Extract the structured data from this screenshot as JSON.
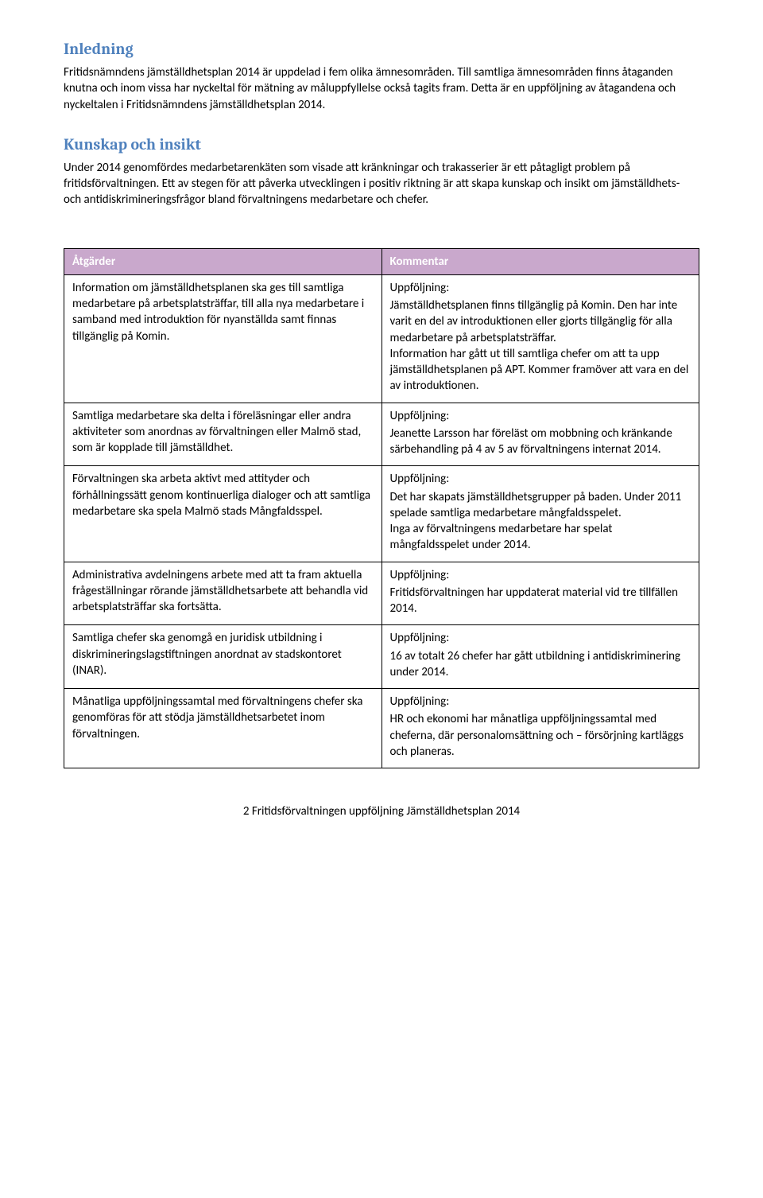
{
  "colors": {
    "heading": "#4f81bd",
    "header_bg": "#c9a8cc",
    "header_text": "#ffffff",
    "border": "#000000",
    "body_text": "#000000",
    "page_bg": "#ffffff"
  },
  "typography": {
    "heading_font": "Cambria, Georgia, serif",
    "body_font": "Calibri, Segoe UI, Arial, sans-serif",
    "heading_size_pt": 15,
    "body_size_pt": 11
  },
  "sections": {
    "intro": {
      "heading": "Inledning",
      "paragraph": "Fritidsnämndens jämställdhetsplan 2014 är uppdelad i fem olika ämnesområden. Till samtliga ämnesområden finns åtaganden knutna och inom vissa har nyckeltal för mätning av måluppfyllelse också tagits fram. Detta är en uppföljning av åtagandena och nyckeltalen i Fritidsnämndens jämställdhetsplan 2014."
    },
    "insight": {
      "heading": "Kunskap och insikt",
      "paragraph": "Under 2014 genomfördes medarbetarenkäten som visade att kränkningar och trakasserier är ett påtagligt problem på fritidsförvaltningen. Ett av stegen för att påverka utvecklingen i positiv riktning är att skapa kunskap och insikt om jämställdhets- och antidiskrimineringsfrågor bland förvaltningens medarbetare och chefer."
    }
  },
  "table": {
    "headers": {
      "col1": "Åtgärder",
      "col2": "Kommentar"
    },
    "followup_label": "Uppföljning:",
    "rows": [
      {
        "action": "Information om jämställdhetsplanen ska ges till samtliga medarbetare på arbetsplatsträffar, till alla nya medarbetare i samband med introduktion för nyanställda samt finnas tillgänglig på Komin.",
        "comment": "Jämställdhetsplanen finns tillgänglig på Komin. Den har inte varit en del av introduktionen eller gjorts tillgänglig för alla medarbetare på arbetsplatsträffar.\nInformation har gått ut till samtliga chefer om att ta upp jämställdhetsplanen på APT. Kommer framöver att vara en del av introduktionen."
      },
      {
        "action": "Samtliga medarbetare ska delta i föreläsningar eller andra aktiviteter som anordnas av förvaltningen eller Malmö stad, som är kopplade till jämställdhet.",
        "comment": "Jeanette Larsson har föreläst om mobbning och kränkande särbehandling på 4 av 5 av förvaltningens internat 2014."
      },
      {
        "action": "Förvaltningen ska arbeta aktivt med attityder och förhållningssätt genom kontinuerliga dialoger och att samtliga medarbetare ska spela Malmö stads Mångfaldsspel.",
        "comment": "Det har skapats jämställdhetsgrupper på baden. Under 2011 spelade samtliga medarbetare mångfaldsspelet.\nInga av förvaltningens medarbetare har spelat mångfaldsspelet under 2014."
      },
      {
        "action": "Administrativa avdelningens arbete med att ta fram aktuella frågeställningar rörande jämställdhetsarbete att behandla vid arbetsplatsträffar ska fortsätta.",
        "comment": "Fritidsförvaltningen har uppdaterat material vid tre tillfällen 2014."
      },
      {
        "action": "Samtliga chefer ska genomgå en juridisk utbildning i diskrimineringslagstiftningen anordnat av stadskontoret (INAR).",
        "comment": "16 av totalt 26 chefer har gått utbildning i antidiskriminering under 2014."
      },
      {
        "action": "Månatliga uppföljningssamtal med förvaltningens chefer ska genomföras för att stödja jämställdhetsarbetet inom förvaltningen.",
        "comment": "HR och ekonomi har månatliga uppföljningssamtal med cheferna, där personalomsättning och – försörjning kartläggs och planeras."
      }
    ]
  },
  "footer": "2 Fritidsförvaltningen uppföljning Jämställdhetsplan 2014"
}
